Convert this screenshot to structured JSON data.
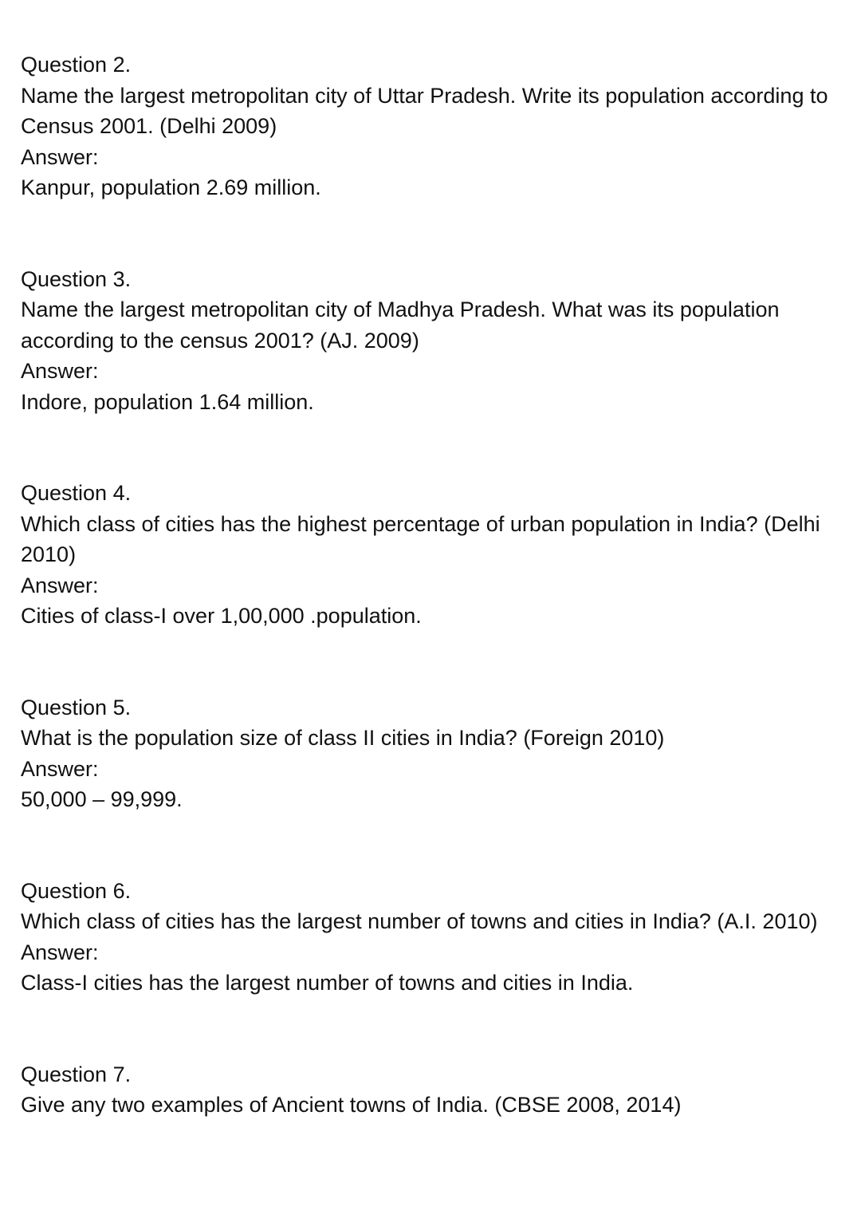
{
  "questions": [
    {
      "label": "Question 2.",
      "question": "Name the largest metropolitan city of Uttar Pradesh. Write its population according to Census 2001. (Delhi 2009)",
      "answer_label": "Answer:",
      "answer": "Kanpur, population 2.69 million."
    },
    {
      "label": "Question 3.",
      "question": "Name the largest metropolitan city of Madhya Pradesh. What was its population according to the census 2001? (AJ. 2009)",
      "answer_label": "Answer:",
      "answer": "Indore, population 1.64 million."
    },
    {
      "label": "Question 4.",
      "question": "Which class of cities has the highest percentage of urban population in India? (Delhi 2010)",
      "answer_label": "Answer:",
      "answer": "Cities of class-I over 1,00,000 .population."
    },
    {
      "label": "Question 5.",
      "question": "What is the population size of class II cities in India? (Foreign 2010)",
      "answer_label": "Answer:",
      "answer": "50,000 – 99,999."
    },
    {
      "label": "Question 6.",
      "question": "Which class of cities has the largest number of towns and cities in India? (A.I. 2010)",
      "answer_label": "Answer:",
      "answer": "Class-I cities has the largest number of towns and cities in India."
    },
    {
      "label": "Question 7.",
      "question": "Give any two examples of Ancient towns of India. (CBSE 2008, 2014)"
    }
  ]
}
